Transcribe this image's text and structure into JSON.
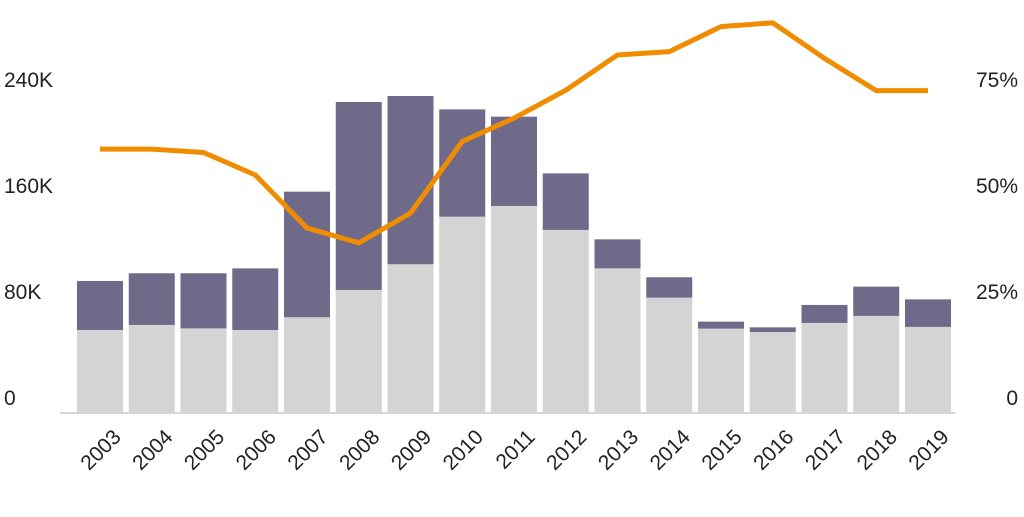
{
  "chart_data": {
    "type": "bar",
    "stacked": true,
    "categories": [
      "2003",
      "2004",
      "2005",
      "2006",
      "2007",
      "2008",
      "2009",
      "2010",
      "2011",
      "2012",
      "2013",
      "2014",
      "2015",
      "2016",
      "2017",
      "2018",
      "2019"
    ],
    "series": [
      {
        "type": "bar",
        "axis": "left",
        "color": "#d4d4d4",
        "values": [
          61900,
          65700,
          63100,
          61900,
          71500,
          92100,
          111500,
          147400,
          155500,
          137400,
          108400,
          86300,
          62900,
          60400,
          67200,
          72500,
          64200
        ]
      },
      {
        "type": "bar",
        "axis": "left",
        "color": "#706a8a",
        "values": [
          37000,
          39000,
          41600,
          46500,
          94800,
          141900,
          127000,
          81000,
          67400,
          42700,
          21900,
          15400,
          5300,
          3500,
          13600,
          22100,
          20800
        ]
      },
      {
        "type": "line",
        "axis": "right",
        "color": "#ef8c00",
        "values": [
          62,
          62,
          61.2,
          55.9,
          43.4,
          39.9,
          46.9,
          63.8,
          69.3,
          75.9,
          84.2,
          85,
          90.9,
          91.8,
          83.4,
          75.8,
          75.8
        ]
      }
    ],
    "left_axis": {
      "ylim": [
        0,
        240000
      ],
      "ticks": [
        0,
        80000,
        160000,
        240000
      ],
      "tick_labels": [
        "0",
        "80K",
        "160K",
        "240K"
      ]
    },
    "right_axis": {
      "ylim": [
        0,
        75
      ],
      "ticks": [
        0,
        25,
        50,
        75
      ],
      "tick_labels": [
        "0",
        "25%",
        "50%",
        "75%"
      ]
    },
    "grid": false,
    "legend": "none",
    "title": "",
    "xlabel": "",
    "ylabel": ""
  }
}
